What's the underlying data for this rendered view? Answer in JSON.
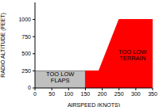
{
  "chart_data": {
    "type": "area",
    "xlabel": "AIRSPEED (KNOTS)",
    "ylabel": "RADIO ALTITUDE (FEET)",
    "xlim": [
      0,
      350
    ],
    "xticks": [
      0,
      50,
      100,
      150,
      200,
      250,
      300,
      350
    ],
    "ylim": [
      0,
      1250
    ],
    "yticks": [
      0,
      250,
      500,
      750,
      1000
    ],
    "grid": false,
    "series": [
      {
        "color": "#c0c0c0",
        "x": [
          0,
          150
        ],
        "values": [
          250,
          250
        ]
      },
      {
        "color": "#ff0000",
        "x": [
          150,
          150,
          190,
          250,
          350
        ],
        "values": [
          0,
          250,
          250,
          1000,
          1000
        ]
      }
    ],
    "annotations": [
      {
        "text": [
          "TOO LOW",
          "FLAPS"
        ],
        "x": 75,
        "y": 125
      },
      {
        "text": [
          "TOO LOW",
          "TERRAIN"
        ],
        "x": 290,
        "y": 450
      }
    ]
  }
}
